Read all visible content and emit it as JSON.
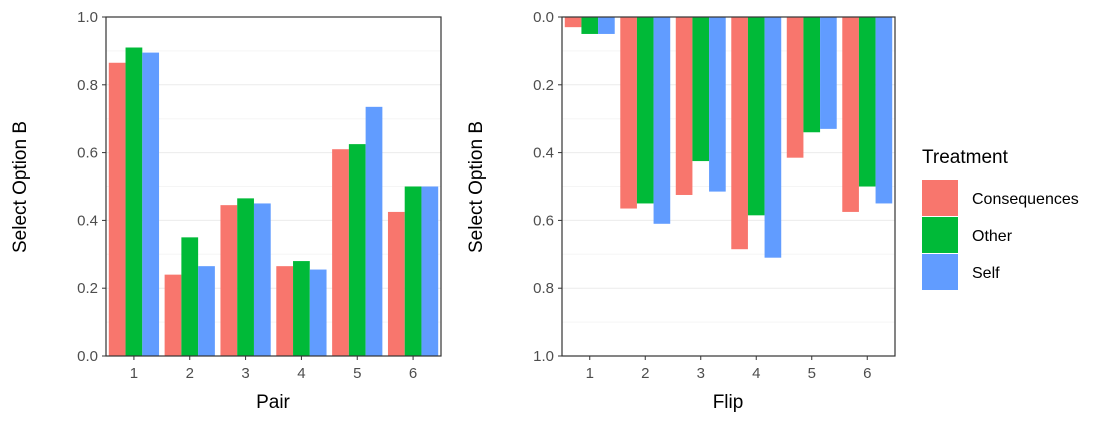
{
  "colors": {
    "Consequences": "#F8766D",
    "Other": "#00BA38",
    "Self": "#619CFF",
    "grid_major": "#ebebeb",
    "grid_minor": "#f5f5f5",
    "panel_border": "#333333"
  },
  "legend": {
    "title": "Treatment",
    "items": [
      "Consequences",
      "Other",
      "Self"
    ]
  },
  "chart_data": [
    {
      "type": "bar",
      "xlabel": "Pair",
      "ylabel": "Select Option B",
      "categories": [
        "1",
        "2",
        "3",
        "4",
        "5",
        "6"
      ],
      "ylim": [
        0,
        1
      ],
      "y_reversed": false,
      "yticks": [
        "0.0",
        "0.2",
        "0.4",
        "0.6",
        "0.8",
        "1.0"
      ],
      "grid": true,
      "legend_position": "right",
      "series": [
        {
          "name": "Consequences",
          "values": [
            0.865,
            0.24,
            0.445,
            0.265,
            0.61,
            0.425
          ]
        },
        {
          "name": "Other",
          "values": [
            0.91,
            0.35,
            0.465,
            0.28,
            0.625,
            0.5
          ]
        },
        {
          "name": "Self",
          "values": [
            0.895,
            0.265,
            0.45,
            0.255,
            0.735,
            0.5
          ]
        }
      ]
    },
    {
      "type": "bar",
      "xlabel": "Flip",
      "ylabel": "Select Option B",
      "categories": [
        "1",
        "2",
        "3",
        "4",
        "5",
        "6"
      ],
      "ylim": [
        0,
        1
      ],
      "y_reversed": true,
      "yticks": [
        "0.0",
        "0.2",
        "0.4",
        "0.6",
        "0.8",
        "1.0"
      ],
      "grid": true,
      "legend_position": "right",
      "series": [
        {
          "name": "Consequences",
          "values": [
            0.03,
            0.565,
            0.525,
            0.685,
            0.415,
            0.575
          ]
        },
        {
          "name": "Other",
          "values": [
            0.05,
            0.55,
            0.425,
            0.585,
            0.34,
            0.5
          ]
        },
        {
          "name": "Self",
          "values": [
            0.05,
            0.61,
            0.515,
            0.71,
            0.33,
            0.55
          ]
        }
      ]
    }
  ]
}
